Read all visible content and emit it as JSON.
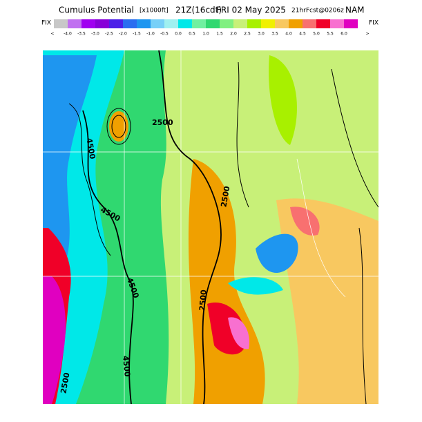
{
  "header": {
    "title": "Cumulus Potential",
    "units": "[x1000ft]",
    "valid": "21Z(16cdt)",
    "date": "FRI 02 May 2025",
    "forecast": "21hrFcst@0206z",
    "model": "NAM"
  },
  "legend": {
    "left": "FIX",
    "right": "FIX",
    "under": "<",
    "over": ">",
    "labels": [
      "-4.0",
      "-3.5",
      "-3.0",
      "-2.5",
      "-2.0",
      "-1.5",
      "-1.0",
      "-0.5",
      "0.0",
      "0.5",
      "1.0",
      "1.5",
      "2.0",
      "2.5",
      "3.0",
      "3.5",
      "4.0",
      "4.5",
      "5.0",
      "5.5",
      "6.0"
    ],
    "colors": [
      "#c8c8c8",
      "#c070f0",
      "#a000f0",
      "#8800d8",
      "#4c20e8",
      "#2a6ef0",
      "#1e96f0",
      "#78d0f8",
      "#a0f0f0",
      "#00e8e8",
      "#70f0a0",
      "#30d870",
      "#80f080",
      "#c8f078",
      "#a8f000",
      "#f0f000",
      "#f8c860",
      "#f0a000",
      "#f87070",
      "#f00028",
      "#f870d0",
      "#e000c0"
    ]
  },
  "map": {
    "contours": [
      "2500",
      "2500",
      "2500",
      "4500",
      "4500",
      "4500",
      "4500",
      "2500"
    ]
  }
}
